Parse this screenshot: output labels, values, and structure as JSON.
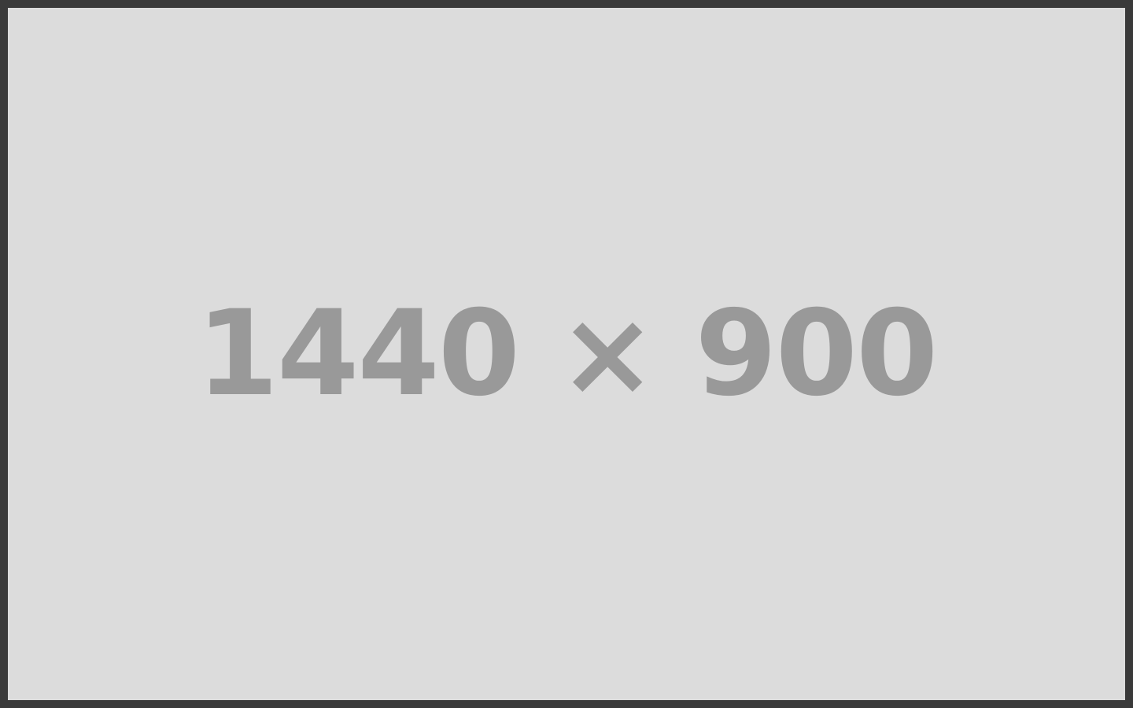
{
  "placeholder": {
    "label": "1440 × 900",
    "background_color": "#dcdcdc",
    "border_color": "#3a3a3a",
    "text_color": "#999999"
  }
}
